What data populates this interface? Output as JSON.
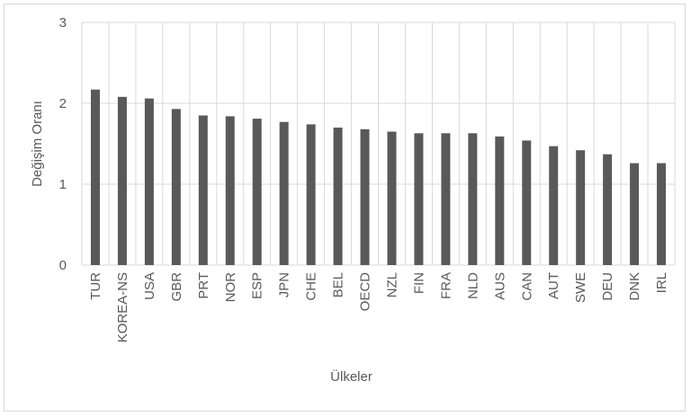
{
  "chart_data": {
    "type": "bar",
    "title": "",
    "xlabel": "Ülkeler",
    "ylabel": "Değişim Oranı",
    "ylim": [
      0,
      3
    ],
    "yticks": [
      0,
      1,
      2,
      3
    ],
    "grid": true,
    "legend": "none",
    "bar_color": "#595959",
    "grid_color": "#d9d9d9",
    "categories": [
      "TUR",
      "KOREA-NS",
      "USA",
      "GBR",
      "PRT",
      "NOR",
      "ESP",
      "JPN",
      "CHE",
      "BEL",
      "OECD",
      "NZL",
      "FIN",
      "FRA",
      "NLD",
      "AUS",
      "CAN",
      "AUT",
      "SWE",
      "DEU",
      "DNK",
      "IRL"
    ],
    "values": [
      2.17,
      2.08,
      2.06,
      1.93,
      1.85,
      1.84,
      1.81,
      1.77,
      1.74,
      1.7,
      1.68,
      1.65,
      1.63,
      1.63,
      1.63,
      1.59,
      1.54,
      1.47,
      1.42,
      1.37,
      1.26,
      1.26
    ]
  }
}
